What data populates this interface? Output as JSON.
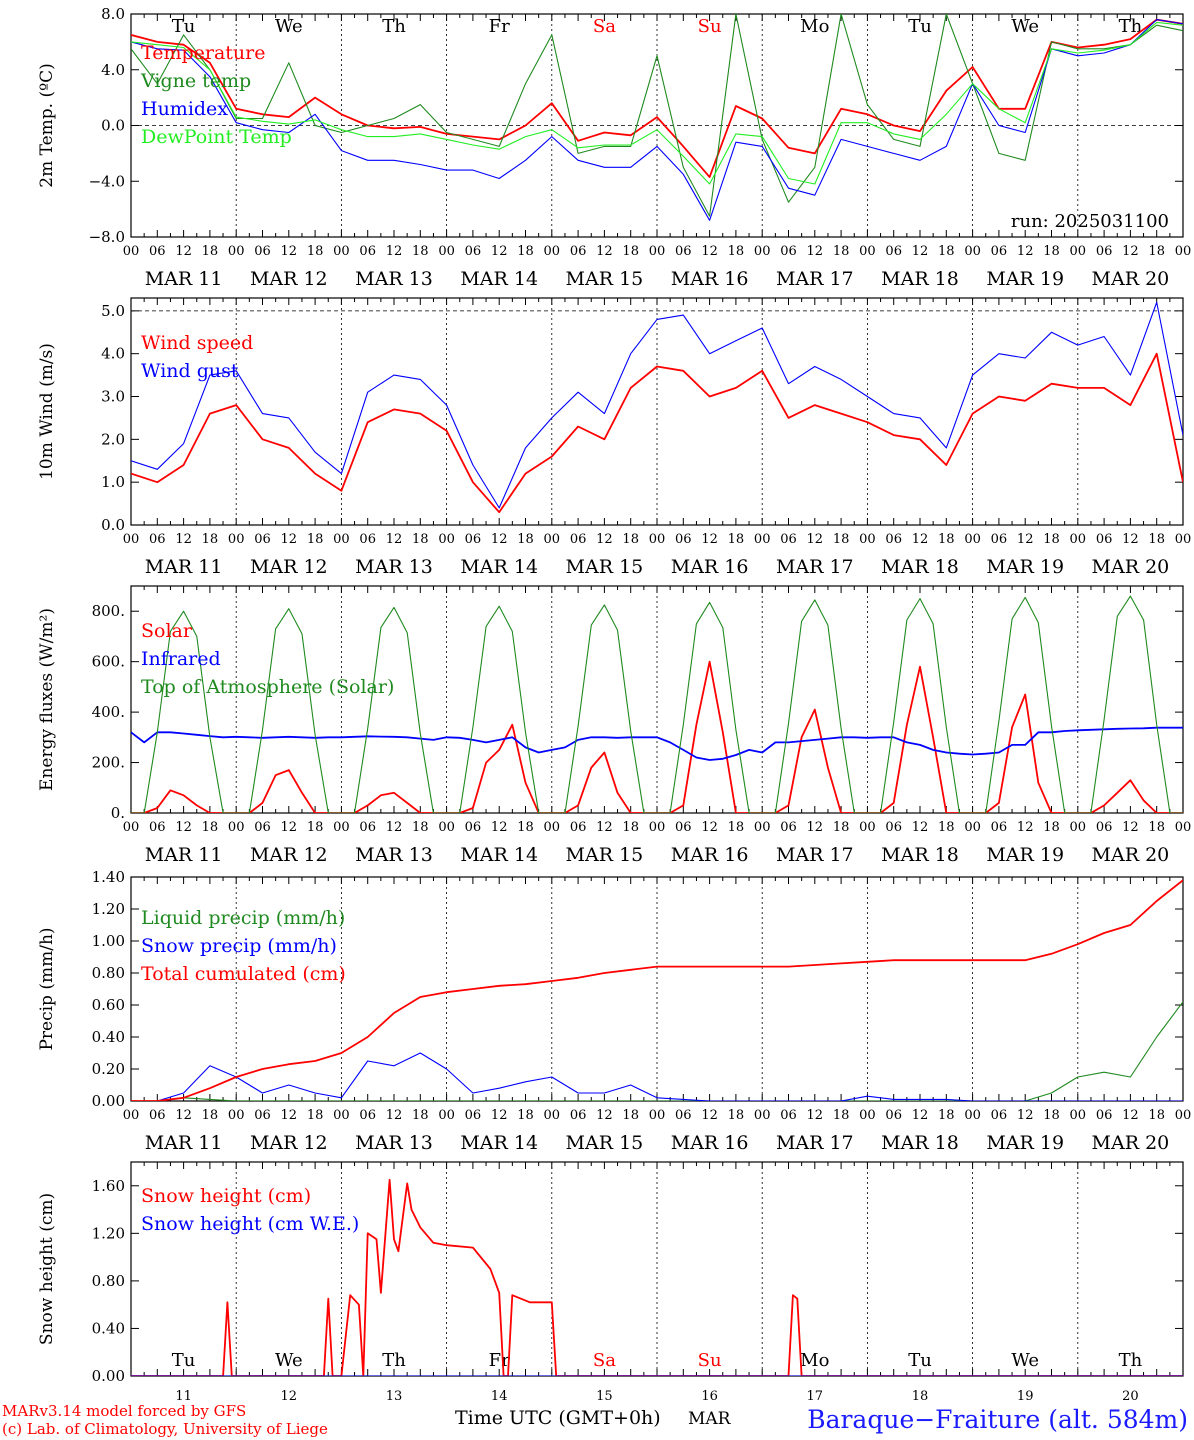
{
  "colors": {
    "red": "#ff0000",
    "darkgreen": "#1f8a1f",
    "blue": "#0000ff",
    "lightgreen": "#22ee22",
    "black": "#000000",
    "sitecolor": "#1a1aff"
  },
  "footer": {
    "model": "MARv3.14 model forced by GFS",
    "lab": "(c) Lab. of Climatology, University of Liege",
    "time_label": "Time UTC (GMT+0h)",
    "month": "MAR",
    "site": "Baraque−Fraiture (alt. 584m)"
  },
  "hour_ticks": [
    "00",
    "06",
    "12",
    "18"
  ],
  "date_labels": [
    "MAR 11",
    "MAR 12",
    "MAR 13",
    "MAR 14",
    "MAR 15",
    "MAR 16",
    "MAR 17",
    "MAR 18",
    "MAR 19",
    "MAR 20"
  ],
  "day_numbers": [
    "11",
    "12",
    "13",
    "14",
    "15",
    "16",
    "17",
    "18",
    "19",
    "20"
  ],
  "weekdays": [
    {
      "name": "Tu",
      "color": "#000000"
    },
    {
      "name": "We",
      "color": "#000000"
    },
    {
      "name": "Th",
      "color": "#000000"
    },
    {
      "name": "Fr",
      "color": "#000000"
    },
    {
      "name": "Sa",
      "color": "#ff0000"
    },
    {
      "name": "Su",
      "color": "#ff0000"
    },
    {
      "name": "Mo",
      "color": "#000000"
    },
    {
      "name": "Tu",
      "color": "#000000"
    },
    {
      "name": "We",
      "color": "#000000"
    },
    {
      "name": "Th",
      "color": "#000000"
    }
  ],
  "chart_data": [
    {
      "type": "line",
      "ylabel": "2m Temp. (ºC)",
      "ylim": [
        -8,
        8
      ],
      "yticks": [
        "8.0",
        "4.0",
        "0.0",
        "−4.0",
        "−8.0"
      ],
      "yticks_values": [
        8,
        4,
        0,
        -4,
        -8
      ],
      "ref_line": 0,
      "annotation": "run: 2025031100",
      "show_weekdays_top": true,
      "x": [
        0,
        6,
        12,
        18,
        24,
        30,
        36,
        42,
        48,
        54,
        60,
        66,
        72,
        78,
        84,
        90,
        96,
        102,
        108,
        114,
        120,
        126,
        132,
        138,
        144,
        150,
        156,
        162,
        168,
        174,
        180,
        186,
        192,
        198,
        204,
        210,
        216,
        222,
        228,
        234,
        240
      ],
      "series": [
        {
          "name": "Temperature",
          "color": "red",
          "values": [
            6.5,
            6.0,
            5.8,
            4.5,
            1.2,
            0.8,
            0.6,
            2.0,
            0.8,
            0.0,
            -0.2,
            -0.1,
            -0.6,
            -0.8,
            -1.0,
            0.0,
            1.6,
            -1.1,
            -0.5,
            -0.7,
            0.6,
            -1.5,
            -3.7,
            1.4,
            0.5,
            -1.6,
            -2.0,
            1.2,
            0.8,
            0.0,
            -0.4,
            2.5,
            4.2,
            1.2,
            1.2,
            6.0,
            5.6,
            5.8,
            6.2,
            7.6,
            7.3
          ]
        },
        {
          "name": "Vigne temp",
          "color": "darkgreen",
          "values": [
            5.5,
            3.0,
            6.5,
            4.0,
            0.5,
            0.5,
            4.5,
            0.0,
            -0.5,
            0.0,
            0.5,
            1.5,
            -0.5,
            -1.0,
            -1.5,
            3.0,
            6.5,
            -2.0,
            -1.5,
            -1.5,
            5.0,
            -3.0,
            -6.5,
            8.0,
            -1.0,
            -5.5,
            -3.0,
            8.0,
            1.5,
            -1.0,
            -1.5,
            8.0,
            3.0,
            -2.0,
            -2.5,
            6.0,
            5.5,
            5.5,
            5.8,
            7.2,
            6.8
          ]
        },
        {
          "name": "Humidex",
          "color": "blue",
          "values": [
            6.0,
            5.5,
            5.4,
            3.5,
            0.2,
            -0.3,
            -0.5,
            0.8,
            -1.8,
            -2.5,
            -2.5,
            -2.8,
            -3.2,
            -3.2,
            -3.8,
            -2.5,
            -0.8,
            -2.5,
            -3.0,
            -3.0,
            -1.5,
            -3.5,
            -6.8,
            -1.2,
            -1.5,
            -4.5,
            -5.0,
            -1.0,
            -1.5,
            -2.0,
            -2.5,
            -1.5,
            3.0,
            0.0,
            -0.5,
            5.5,
            5.0,
            5.2,
            5.8,
            7.6,
            7.3
          ]
        },
        {
          "name": "DewPoint Temp",
          "color": "lightgreen",
          "values": [
            6.0,
            5.8,
            5.6,
            4.0,
            0.6,
            0.3,
            0.1,
            0.4,
            -0.3,
            -0.8,
            -0.8,
            -0.6,
            -1.0,
            -1.4,
            -1.7,
            -0.8,
            -0.3,
            -1.6,
            -1.4,
            -1.4,
            -0.3,
            -2.2,
            -4.2,
            -0.6,
            -0.8,
            -3.8,
            -4.2,
            0.2,
            0.2,
            -0.6,
            -1.0,
            0.8,
            3.0,
            1.2,
            0.2,
            5.5,
            5.2,
            5.4,
            5.8,
            7.4,
            7.2
          ]
        }
      ]
    },
    {
      "type": "line",
      "ylabel": "10m Wind (m/s)",
      "ylim": [
        0,
        5.3
      ],
      "yticks": [
        "5.0",
        "4.0",
        "3.0",
        "2.0",
        "1.0",
        "0.0"
      ],
      "yticks_values": [
        5,
        4,
        3,
        2,
        1,
        0
      ],
      "ref_line": 5,
      "x": [
        0,
        6,
        12,
        18,
        24,
        30,
        36,
        42,
        48,
        54,
        60,
        66,
        72,
        78,
        84,
        90,
        96,
        102,
        108,
        114,
        120,
        126,
        132,
        138,
        144,
        150,
        156,
        162,
        168,
        174,
        180,
        186,
        192,
        198,
        204,
        210,
        216,
        222,
        228,
        234,
        240
      ],
      "series": [
        {
          "name": "Wind speed",
          "color": "red",
          "values": [
            1.2,
            1.0,
            1.4,
            2.6,
            2.8,
            2.0,
            1.8,
            1.2,
            0.8,
            2.4,
            2.7,
            2.6,
            2.2,
            1.0,
            0.3,
            1.2,
            1.6,
            2.3,
            2.0,
            3.2,
            3.7,
            3.6,
            3.0,
            3.2,
            3.6,
            2.5,
            2.8,
            2.6,
            2.4,
            2.1,
            2.0,
            1.4,
            2.6,
            3.0,
            2.9,
            3.3,
            3.2,
            3.2,
            2.8,
            4.0,
            1.0
          ]
        },
        {
          "name": "Wind gust",
          "color": "blue",
          "values": [
            1.5,
            1.3,
            1.9,
            3.5,
            3.6,
            2.6,
            2.5,
            1.7,
            1.2,
            3.1,
            3.5,
            3.4,
            2.8,
            1.4,
            0.4,
            1.8,
            2.5,
            3.1,
            2.6,
            4.0,
            4.8,
            4.9,
            4.0,
            4.3,
            4.6,
            3.3,
            3.7,
            3.4,
            3.0,
            2.6,
            2.5,
            1.8,
            3.5,
            4.0,
            3.9,
            4.5,
            4.2,
            4.4,
            3.5,
            5.2,
            2.1
          ]
        }
      ]
    },
    {
      "type": "line",
      "ylabel": "Energy fluxes (W/m²)",
      "ylim": [
        0,
        900
      ],
      "yticks": [
        "800.",
        "600.",
        "400.",
        "200.",
        "0."
      ],
      "yticks_values": [
        800,
        600,
        400,
        200,
        0
      ],
      "x": [
        0,
        3,
        6,
        9,
        12,
        15,
        18,
        21,
        24,
        27,
        30,
        33,
        36,
        39,
        42,
        45,
        48,
        51,
        54,
        57,
        60,
        63,
        66,
        69,
        72,
        75,
        78,
        81,
        84,
        87,
        90,
        93,
        96,
        99,
        102,
        105,
        108,
        111,
        114,
        117,
        120,
        123,
        126,
        129,
        132,
        135,
        138,
        141,
        144,
        147,
        150,
        153,
        156,
        159,
        162,
        165,
        168,
        171,
        174,
        177,
        180,
        183,
        186,
        189,
        192,
        195,
        198,
        201,
        204,
        207,
        210,
        213,
        216,
        219,
        222,
        225,
        228,
        231,
        234,
        237,
        240
      ],
      "series": [
        {
          "name": "Solar",
          "color": "red",
          "values": [
            0,
            0,
            20,
            90,
            70,
            30,
            0,
            0,
            0,
            0,
            40,
            150,
            170,
            80,
            0,
            0,
            0,
            0,
            30,
            70,
            80,
            40,
            0,
            0,
            0,
            0,
            20,
            200,
            250,
            350,
            120,
            0,
            0,
            0,
            30,
            180,
            240,
            80,
            0,
            0,
            0,
            0,
            30,
            350,
            600,
            320,
            0,
            0,
            0,
            0,
            30,
            300,
            410,
            180,
            0,
            0,
            0,
            0,
            40,
            350,
            580,
            300,
            0,
            0,
            0,
            0,
            40,
            340,
            470,
            120,
            0,
            0,
            0,
            0,
            30,
            80,
            130,
            50,
            0,
            0,
            0
          ]
        },
        {
          "name": "Infrared",
          "color": "blue",
          "values": [
            320,
            280,
            320,
            320,
            315,
            310,
            305,
            300,
            302,
            300,
            298,
            300,
            302,
            300,
            298,
            300,
            300,
            302,
            304,
            303,
            302,
            300,
            295,
            290,
            300,
            298,
            290,
            280,
            290,
            300,
            260,
            240,
            250,
            260,
            290,
            300,
            300,
            298,
            300,
            300,
            300,
            280,
            250,
            220,
            210,
            215,
            230,
            250,
            240,
            280,
            280,
            285,
            290,
            295,
            300,
            300,
            298,
            300,
            300,
            280,
            270,
            250,
            240,
            235,
            232,
            235,
            240,
            270,
            270,
            320,
            320,
            325,
            328,
            330,
            332,
            334,
            335,
            336,
            338,
            338,
            338
          ]
        },
        {
          "name": "Top of Atmosphere (Solar)",
          "color": "darkgreen",
          "values": [
            0,
            0,
            320,
            720,
            800,
            700,
            300,
            0,
            0,
            0,
            330,
            730,
            810,
            710,
            310,
            0,
            0,
            0,
            335,
            735,
            815,
            715,
            315,
            0,
            0,
            0,
            340,
            740,
            820,
            720,
            320,
            0,
            0,
            0,
            345,
            745,
            825,
            725,
            325,
            0,
            0,
            0,
            350,
            750,
            835,
            735,
            330,
            0,
            0,
            0,
            355,
            760,
            845,
            745,
            335,
            0,
            0,
            0,
            360,
            765,
            850,
            750,
            340,
            0,
            0,
            0,
            365,
            770,
            855,
            755,
            345,
            0,
            0,
            0,
            370,
            780,
            860,
            765,
            350,
            0,
            0
          ]
        }
      ]
    },
    {
      "type": "line",
      "ylabel": "Precip (mm/h)",
      "ylim": [
        0,
        1.4
      ],
      "yticks": [
        "1.40",
        "1.20",
        "1.00",
        "0.80",
        "0.60",
        "0.40",
        "0.20",
        "0.00"
      ],
      "yticks_values": [
        1.4,
        1.2,
        1.0,
        0.8,
        0.6,
        0.4,
        0.2,
        0.0
      ],
      "x": [
        0,
        6,
        12,
        18,
        24,
        30,
        36,
        42,
        48,
        54,
        60,
        66,
        72,
        78,
        84,
        90,
        96,
        102,
        108,
        114,
        120,
        126,
        132,
        138,
        144,
        150,
        156,
        162,
        168,
        174,
        180,
        186,
        192,
        198,
        204,
        210,
        216,
        222,
        228,
        234,
        240
      ],
      "series": [
        {
          "name": "Liquid precip (mm/h)",
          "color": "darkgreen",
          "values": [
            0,
            0,
            0.02,
            0.01,
            0,
            0,
            0,
            0,
            0,
            0,
            0,
            0,
            0,
            0,
            0,
            0,
            0,
            0,
            0,
            0,
            0,
            0,
            0,
            0,
            0,
            0,
            0,
            0,
            0,
            0,
            0,
            0,
            0,
            0,
            0,
            0.05,
            0.15,
            0.18,
            0.15,
            0.4,
            0.62
          ]
        },
        {
          "name": "Snow precip (mm/h)",
          "color": "blue",
          "values": [
            0,
            0,
            0.05,
            0.22,
            0.15,
            0.05,
            0.1,
            0.05,
            0.02,
            0.25,
            0.22,
            0.3,
            0.2,
            0.05,
            0.08,
            0.12,
            0.15,
            0.05,
            0.05,
            0.1,
            0.02,
            0.01,
            0,
            0,
            0,
            0,
            0,
            0,
            0.03,
            0.01,
            0.01,
            0.01,
            0,
            0,
            0,
            0,
            0,
            0,
            0,
            0,
            0
          ]
        },
        {
          "name": "Total cumulated (cm)",
          "color": "red",
          "values": [
            0,
            0,
            0.02,
            0.08,
            0.15,
            0.2,
            0.23,
            0.25,
            0.3,
            0.4,
            0.55,
            0.65,
            0.68,
            0.7,
            0.72,
            0.73,
            0.75,
            0.77,
            0.8,
            0.82,
            0.84,
            0.84,
            0.84,
            0.84,
            0.84,
            0.84,
            0.85,
            0.86,
            0.87,
            0.88,
            0.88,
            0.88,
            0.88,
            0.88,
            0.88,
            0.92,
            0.98,
            1.05,
            1.1,
            1.25,
            1.38
          ]
        }
      ]
    },
    {
      "type": "line",
      "ylabel": "Snow height (cm)",
      "ylim": [
        0,
        1.8
      ],
      "yticks": [
        "1.60",
        "1.20",
        "0.80",
        "0.40",
        "0.00"
      ],
      "yticks_values": [
        1.6,
        1.2,
        0.8,
        0.4,
        0.0
      ],
      "show_weekdays_bottom": true,
      "x": [
        0,
        21,
        22,
        23,
        44,
        45,
        46,
        48,
        50,
        52,
        53,
        54,
        56,
        57,
        59,
        60,
        61,
        63,
        64,
        66,
        69,
        72,
        78,
        82,
        84,
        85,
        86,
        87,
        91,
        96,
        97,
        98,
        102,
        120,
        144,
        150,
        151,
        152,
        153,
        154,
        240
      ],
      "series": [
        {
          "name": "Snow height (cm)",
          "color": "red",
          "values": [
            0,
            0,
            0.62,
            0,
            0,
            0.65,
            0,
            0,
            0.68,
            0.6,
            0,
            1.2,
            1.15,
            0.7,
            1.65,
            1.15,
            1.05,
            1.62,
            1.4,
            1.25,
            1.12,
            1.1,
            1.08,
            0.9,
            0.7,
            0,
            0,
            0.68,
            0.62,
            0.62,
            0,
            0,
            0,
            0,
            0,
            0,
            0.68,
            0.65,
            0,
            0,
            0
          ]
        },
        {
          "name": "Snow height (cm W.E.)",
          "color": "blue",
          "values": [
            0,
            0,
            0,
            0,
            0,
            0,
            0,
            0,
            0,
            0,
            0,
            0,
            0,
            0,
            0,
            0,
            0,
            0,
            0,
            0,
            0,
            0,
            0,
            0,
            0,
            0,
            0,
            0,
            0,
            0,
            0,
            0,
            0,
            0,
            0,
            0,
            0,
            0,
            0,
            0,
            0
          ]
        }
      ]
    }
  ]
}
